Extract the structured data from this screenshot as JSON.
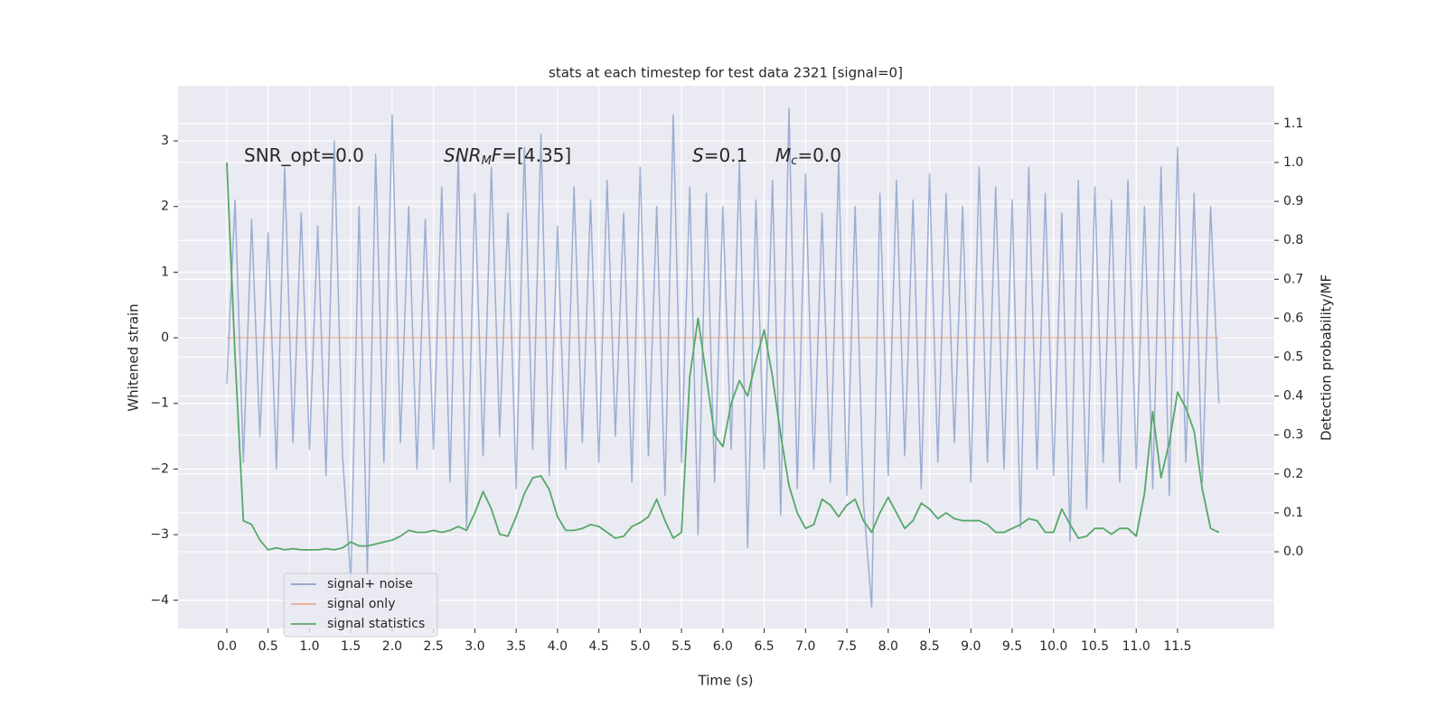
{
  "chart_data": {
    "type": "line",
    "title": "stats at each timestep for test data 2321 [signal=0]",
    "xlabel": "Time (s)",
    "ylabel": "Whitened strain",
    "y2label": "Detection probability/MF",
    "annotations": [
      [
        {
          "text": "SNR_opt=0.0"
        }
      ],
      [
        {
          "text": "SNR",
          "italic": true
        },
        {
          "text": "M",
          "italic": true,
          "sub": true
        },
        {
          "text": "F",
          "italic": true
        },
        {
          "text": "=[4.35]"
        }
      ],
      [
        {
          "text": "S",
          "italic": true
        },
        {
          "text": "=0.1"
        }
      ],
      [
        {
          "text": "M",
          "italic": true
        },
        {
          "text": "c",
          "italic": true,
          "sub": true
        },
        {
          "text": "=0.0"
        }
      ]
    ],
    "x": [
      0.0,
      0.1,
      0.2,
      0.3,
      0.4,
      0.5,
      0.6,
      0.7,
      0.8,
      0.9,
      1.0,
      1.1,
      1.2,
      1.3,
      1.4,
      1.5,
      1.6,
      1.7,
      1.8,
      1.9,
      2.0,
      2.1,
      2.2,
      2.3,
      2.4,
      2.5,
      2.6,
      2.7,
      2.8,
      2.9,
      3.0,
      3.1,
      3.2,
      3.3,
      3.4,
      3.5,
      3.6,
      3.7,
      3.8,
      3.9,
      4.0,
      4.1,
      4.2,
      4.3,
      4.4,
      4.5,
      4.6,
      4.7,
      4.8,
      4.9,
      5.0,
      5.1,
      5.2,
      5.3,
      5.4,
      5.5,
      5.6,
      5.7,
      5.8,
      5.9,
      6.0,
      6.1,
      6.2,
      6.3,
      6.4,
      6.5,
      6.6,
      6.7,
      6.8,
      6.9,
      7.0,
      7.1,
      7.2,
      7.3,
      7.4,
      7.5,
      7.6,
      7.7,
      7.8,
      7.9,
      8.0,
      8.1,
      8.2,
      8.3,
      8.4,
      8.5,
      8.6,
      8.7,
      8.8,
      8.9,
      9.0,
      9.1,
      9.2,
      9.3,
      9.4,
      9.5,
      9.6,
      9.7,
      9.8,
      9.9,
      10.0,
      10.1,
      10.2,
      10.3,
      10.4,
      10.5,
      10.6,
      10.7,
      10.8,
      10.9,
      11.0,
      11.1,
      11.2,
      11.3,
      11.4,
      11.5,
      11.6,
      11.7,
      11.8,
      11.9,
      12.0
    ],
    "series": [
      {
        "name": "signal+ noise",
        "color": "#4c72b0",
        "values": [
          -0.7,
          2.1,
          -1.9,
          1.8,
          -1.5,
          1.6,
          -2.0,
          2.6,
          -1.6,
          1.9,
          -1.7,
          1.7,
          -2.1,
          3.0,
          -1.8,
          -3.7,
          2.0,
          -3.6,
          2.8,
          -1.9,
          3.4,
          -1.6,
          2.0,
          -2.0,
          1.8,
          -1.7,
          2.3,
          -2.2,
          2.8,
          -2.9,
          2.2,
          -1.8,
          2.6,
          -1.5,
          1.9,
          -2.3,
          2.9,
          -1.7,
          3.1,
          -2.1,
          1.7,
          -2.0,
          2.3,
          -1.6,
          2.1,
          -1.9,
          2.4,
          -1.5,
          1.9,
          -2.2,
          2.6,
          -1.8,
          2.0,
          -2.4,
          3.4,
          -1.9,
          2.3,
          -3.0,
          2.2,
          -2.2,
          2.0,
          -1.7,
          2.7,
          -3.2,
          2.1,
          -2.0,
          2.4,
          -2.7,
          3.5,
          -2.3,
          2.5,
          -2.0,
          1.9,
          -2.2,
          2.7,
          -2.4,
          2.0,
          -2.5,
          -4.1,
          2.2,
          -2.1,
          2.4,
          -1.8,
          2.1,
          -2.3,
          2.5,
          -1.9,
          2.2,
          -1.6,
          2.0,
          -2.2,
          2.6,
          -1.9,
          2.3,
          -2.0,
          2.1,
          -2.9,
          2.6,
          -2.0,
          2.2,
          -2.1,
          1.9,
          -3.1,
          2.4,
          -2.6,
          2.3,
          -1.9,
          2.1,
          -2.2,
          2.4,
          -2.0,
          2.0,
          -2.3,
          2.6,
          -2.4,
          2.9,
          -1.9,
          2.2,
          -2.2,
          2.0,
          -1.0
        ]
      },
      {
        "name": "signal only",
        "color": "#dd8452",
        "x": [
          0,
          12
        ],
        "values": [
          0,
          0
        ]
      },
      {
        "name": "signal statistics",
        "color": "#55a868",
        "axis": "y2",
        "values": [
          1.0,
          0.5,
          0.08,
          0.07,
          0.03,
          0.005,
          0.01,
          0.005,
          0.008,
          0.005,
          0.005,
          0.005,
          0.008,
          0.005,
          0.01,
          0.025,
          0.015,
          0.015,
          0.02,
          0.025,
          0.03,
          0.04,
          0.055,
          0.05,
          0.05,
          0.055,
          0.05,
          0.055,
          0.065,
          0.055,
          0.1,
          0.155,
          0.11,
          0.045,
          0.04,
          0.09,
          0.15,
          0.19,
          0.195,
          0.16,
          0.09,
          0.055,
          0.055,
          0.06,
          0.07,
          0.065,
          0.05,
          0.035,
          0.04,
          0.065,
          0.075,
          0.09,
          0.135,
          0.08,
          0.035,
          0.05,
          0.45,
          0.6,
          0.45,
          0.3,
          0.27,
          0.38,
          0.44,
          0.4,
          0.49,
          0.57,
          0.45,
          0.3,
          0.17,
          0.1,
          0.06,
          0.07,
          0.135,
          0.12,
          0.09,
          0.12,
          0.135,
          0.08,
          0.05,
          0.1,
          0.14,
          0.1,
          0.06,
          0.08,
          0.125,
          0.11,
          0.085,
          0.1,
          0.085,
          0.08,
          0.08,
          0.08,
          0.07,
          0.05,
          0.05,
          0.06,
          0.07,
          0.085,
          0.08,
          0.05,
          0.05,
          0.11,
          0.07,
          0.035,
          0.04,
          0.06,
          0.06,
          0.045,
          0.06,
          0.06,
          0.04,
          0.15,
          0.36,
          0.19,
          0.28,
          0.41,
          0.37,
          0.31,
          0.16,
          0.06,
          0.05
        ]
      }
    ],
    "xlim": [
      -0.59,
      12.67
    ],
    "ylim": [
      -4.43,
      3.84
    ],
    "y2lim": [
      -0.197,
      1.197
    ],
    "xticks": [
      {
        "value": 0,
        "label": "0.0"
      },
      0.5,
      {
        "value": 1,
        "label": "1.0"
      },
      1.5,
      {
        "value": 2,
        "label": "2.0"
      },
      2.5,
      {
        "value": 3,
        "label": "3.0"
      },
      3.5,
      {
        "value": 4,
        "label": "4.0"
      },
      4.5,
      {
        "value": 5,
        "label": "5.0"
      },
      5.5,
      {
        "value": 6,
        "label": "6.0"
      },
      6.5,
      {
        "value": 7,
        "label": "7.0"
      },
      7.5,
      {
        "value": 8,
        "label": "8.0"
      },
      8.5,
      {
        "value": 9,
        "label": "9.0"
      },
      9.5,
      {
        "value": 10,
        "label": "10.0"
      },
      10.5,
      {
        "value": 11,
        "label": "11.0"
      },
      11.5
    ],
    "yticks": [
      {
        "value": -4,
        "label": "−4"
      },
      {
        "value": -3,
        "label": "−3"
      },
      {
        "value": -2,
        "label": "−2"
      },
      {
        "value": -1,
        "label": "−1"
      },
      0,
      1,
      2,
      3
    ],
    "y2ticks": [
      {
        "value": 0,
        "label": "0.0"
      },
      0.1,
      0.2,
      0.3,
      0.4,
      0.5,
      0.6,
      0.7,
      0.8,
      0.9,
      {
        "value": 1,
        "label": "1.0"
      },
      1.1
    ],
    "grid": true,
    "legend": "lower left"
  }
}
